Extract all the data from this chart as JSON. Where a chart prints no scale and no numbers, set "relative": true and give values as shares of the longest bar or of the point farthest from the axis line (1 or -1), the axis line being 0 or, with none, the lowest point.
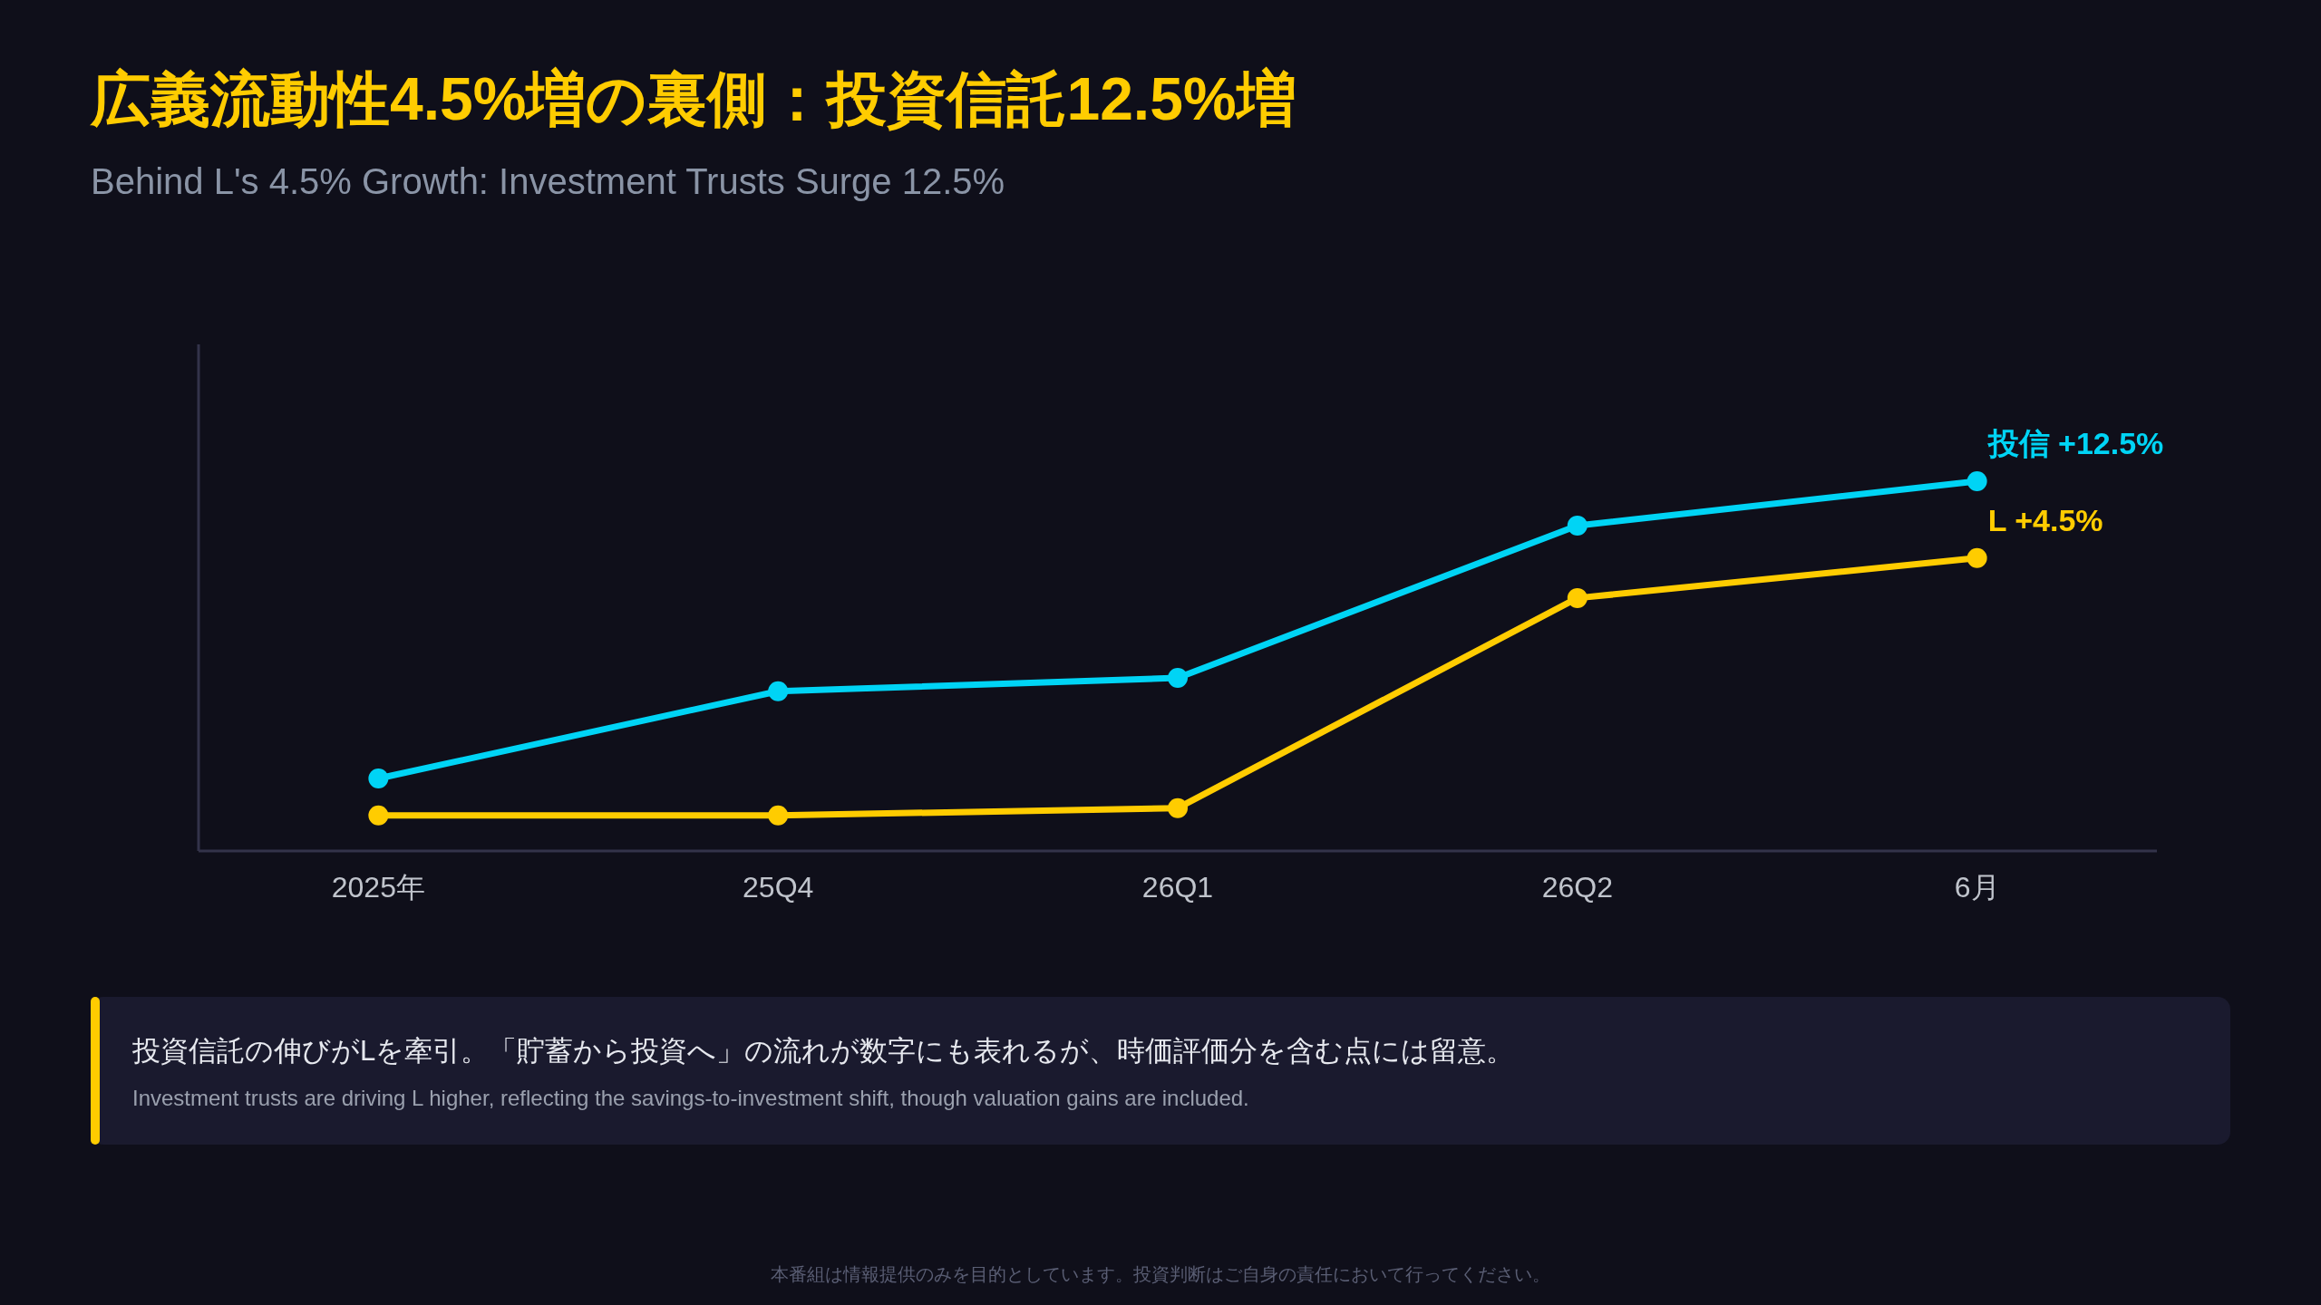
{
  "chart_data": {
    "type": "line",
    "title": "広義流動性4.5%増の裏側：投資信託12.5%増",
    "subtitle": "Behind L's 4.5% Growth: Investment Trusts Surge 12.5%",
    "categories": [
      "2025年",
      "25Q4",
      "26Q1",
      "26Q2",
      "6月"
    ],
    "relative": true,
    "marker": "circle",
    "line_style": "solid",
    "tick_labels": "x",
    "series": [
      {
        "name": "投信 +12.5%",
        "color": "#00d4f5",
        "values": [
          0.196,
          0.432,
          0.468,
          0.88,
          1
        ]
      },
      {
        "name": "L +4.5%",
        "color": "#ffcc00",
        "values": [
          0.096,
          0.096,
          0.116,
          0.684,
          0.792
        ]
      }
    ],
    "annotations": [
      "投資信託の伸びがLを牽引。「貯蓄から投資へ」の流れが数字にも表れるが、時価評価分を含む点には留意。",
      "Investment trusts are driving L higher, reflecting the savings-to-investment shift, though valuation gains are included.",
      "本番組は情報提供のみを目的としています。投資判断はご自身の責任において行ってください。"
    ]
  }
}
